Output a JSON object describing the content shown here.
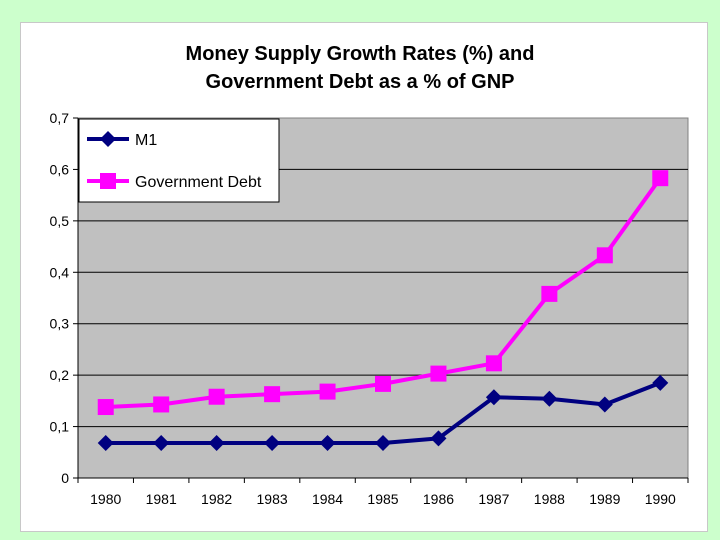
{
  "chart_data": {
    "type": "line",
    "title_lines": [
      "Money Supply Growth Rates (%) and",
      "Government Debt as a % of GNP"
    ],
    "xlabel": "",
    "ylabel": "",
    "x": [
      "1980",
      "1981",
      "1982",
      "1983",
      "1984",
      "1985",
      "1986",
      "1987",
      "1988",
      "1989",
      "1990"
    ],
    "ylim": [
      0,
      0.7
    ],
    "y_ticks": [
      0,
      0.1,
      0.2,
      0.3,
      0.4,
      0.5,
      0.6,
      0.7
    ],
    "y_tick_labels": [
      "0",
      "0,1",
      "0,2",
      "0,3",
      "0,4",
      "0,5",
      "0,6",
      "0,7"
    ],
    "grid": "horizontal",
    "legend_placement": "top-left",
    "series": [
      {
        "name": "M1",
        "color": "#000080",
        "marker": "diamond",
        "values": [
          0.068,
          0.068,
          0.068,
          0.068,
          0.068,
          0.068,
          0.077,
          0.157,
          0.154,
          0.143,
          0.185
        ]
      },
      {
        "name": "Government Debt",
        "color": "#ff00ff",
        "marker": "square",
        "values": [
          0.138,
          0.143,
          0.158,
          0.163,
          0.168,
          0.183,
          0.203,
          0.223,
          0.358,
          0.433,
          0.583
        ]
      }
    ]
  }
}
